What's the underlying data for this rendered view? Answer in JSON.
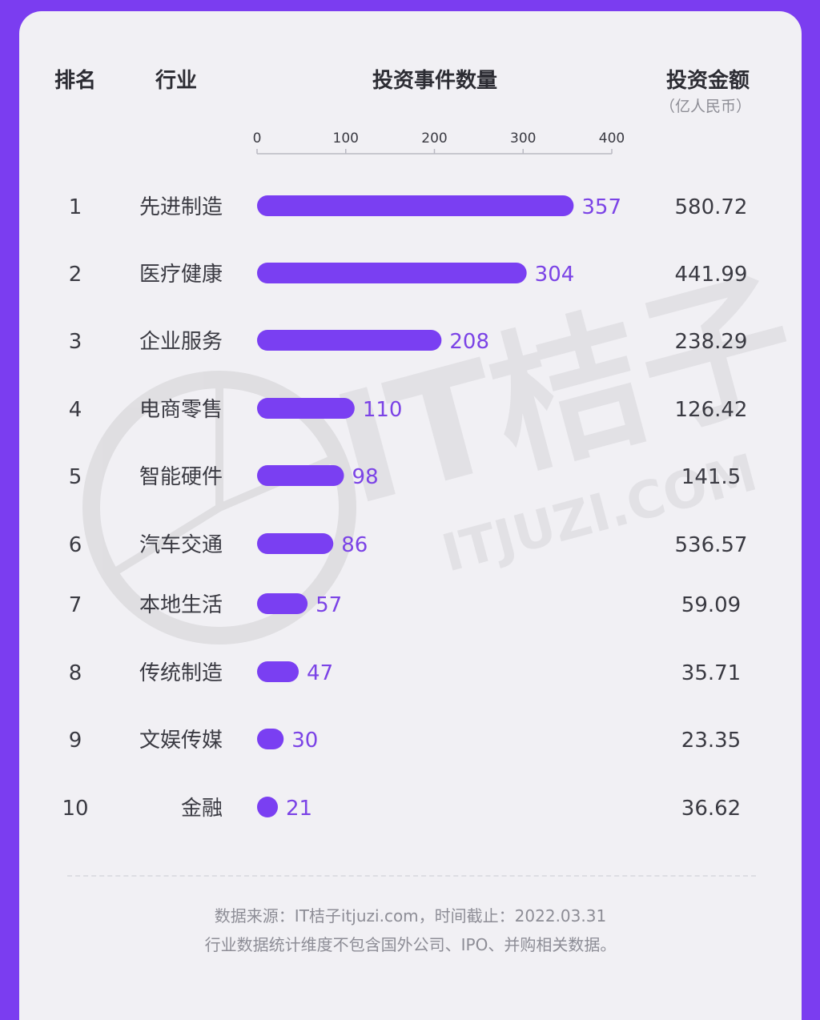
{
  "header": {
    "rank": "排名",
    "industry": "行业",
    "events": "投资事件数量",
    "amount": "投资金额",
    "amount_unit": "（亿人民币）"
  },
  "chart_data": {
    "type": "bar",
    "orientation": "horizontal",
    "xlim": [
      0,
      400
    ],
    "ticks": [
      0,
      100,
      200,
      300,
      400
    ],
    "grid": false,
    "ranks": [
      "1",
      "2",
      "3",
      "4",
      "5",
      "6",
      "7",
      "8",
      "9",
      "10"
    ],
    "categories": [
      "先进制造",
      "医疗健康",
      "企业服务",
      "电商零售",
      "智能硬件",
      "汽车交通",
      "本地生活",
      "传统制造",
      "文娱传媒",
      "金融"
    ],
    "values": [
      357,
      304,
      208,
      110,
      98,
      86,
      57,
      47,
      30,
      21
    ],
    "amounts": [
      "580.72",
      "441.99",
      "238.29",
      "126.42",
      "141.5",
      "536.57",
      "59.09",
      "35.71",
      "23.35",
      "36.62"
    ],
    "bar_color": "#7a3ff2",
    "label_color": "#7b43e6"
  },
  "footer": {
    "line1": "数据来源：IT桔子itjuzi.com，时间截止：2022.03.31",
    "line2": "行业数据统计维度不包含国外公司、IPO、并购相关数据。"
  },
  "watermark": {
    "text": "IT桔子",
    "subtext": "ITJUZI.COM"
  }
}
